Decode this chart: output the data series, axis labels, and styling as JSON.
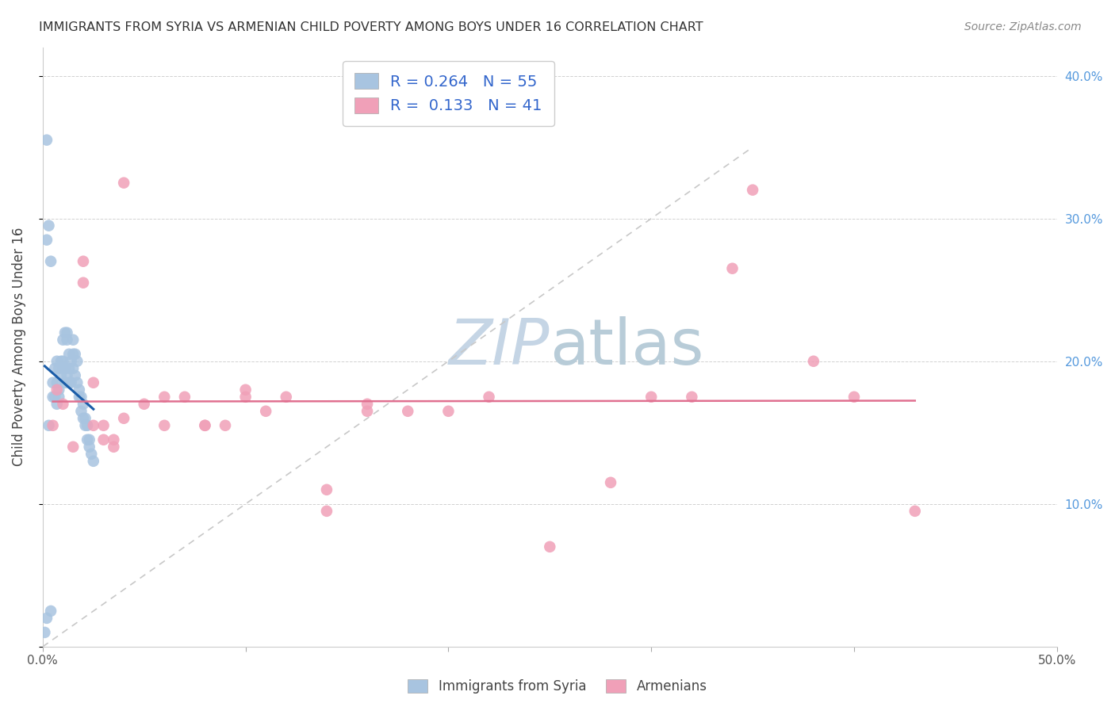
{
  "title": "IMMIGRANTS FROM SYRIA VS ARMENIAN CHILD POVERTY AMONG BOYS UNDER 16 CORRELATION CHART",
  "source": "Source: ZipAtlas.com",
  "ylabel": "Child Poverty Among Boys Under 16",
  "xlim": [
    0.0,
    0.5
  ],
  "ylim": [
    0.0,
    0.42
  ],
  "R_syria": 0.264,
  "N_syria": 55,
  "R_armenian": 0.133,
  "N_armenian": 41,
  "color_syria": "#a8c4e0",
  "color_armenian": "#f0a0b8",
  "trendline_syria_color": "#1a5ca8",
  "trendline_armenian_color": "#e07090",
  "diagonal_color": "#c8c8c8",
  "watermark_color": "#ccdaeb",
  "background": "#ffffff",
  "legend_syria": "Immigrants from Syria",
  "legend_armenian": "Armenians",
  "syria_x": [
    0.002,
    0.003,
    0.004,
    0.005,
    0.005,
    0.006,
    0.006,
    0.007,
    0.007,
    0.007,
    0.008,
    0.008,
    0.008,
    0.009,
    0.009,
    0.01,
    0.01,
    0.01,
    0.011,
    0.011,
    0.011,
    0.012,
    0.012,
    0.012,
    0.013,
    0.013,
    0.013,
    0.014,
    0.014,
    0.015,
    0.015,
    0.015,
    0.016,
    0.016,
    0.017,
    0.017,
    0.018,
    0.018,
    0.019,
    0.019,
    0.02,
    0.02,
    0.021,
    0.021,
    0.022,
    0.022,
    0.023,
    0.023,
    0.024,
    0.025,
    0.002,
    0.003,
    0.004,
    0.002,
    0.001
  ],
  "syria_y": [
    0.355,
    0.155,
    0.025,
    0.175,
    0.185,
    0.195,
    0.175,
    0.2,
    0.185,
    0.17,
    0.195,
    0.18,
    0.175,
    0.2,
    0.19,
    0.215,
    0.2,
    0.195,
    0.22,
    0.195,
    0.185,
    0.22,
    0.215,
    0.19,
    0.205,
    0.195,
    0.185,
    0.2,
    0.185,
    0.215,
    0.205,
    0.195,
    0.205,
    0.19,
    0.2,
    0.185,
    0.18,
    0.175,
    0.175,
    0.165,
    0.17,
    0.16,
    0.16,
    0.155,
    0.155,
    0.145,
    0.145,
    0.14,
    0.135,
    0.13,
    0.285,
    0.295,
    0.27,
    0.02,
    0.01
  ],
  "armenian_x": [
    0.005,
    0.007,
    0.01,
    0.015,
    0.02,
    0.025,
    0.03,
    0.035,
    0.04,
    0.05,
    0.06,
    0.07,
    0.08,
    0.09,
    0.1,
    0.11,
    0.12,
    0.14,
    0.16,
    0.18,
    0.02,
    0.025,
    0.03,
    0.035,
    0.04,
    0.06,
    0.08,
    0.1,
    0.14,
    0.16,
    0.3,
    0.32,
    0.34,
    0.38,
    0.4,
    0.43,
    0.2,
    0.22,
    0.25,
    0.28,
    0.35
  ],
  "armenian_y": [
    0.155,
    0.18,
    0.17,
    0.14,
    0.255,
    0.155,
    0.145,
    0.145,
    0.325,
    0.17,
    0.175,
    0.175,
    0.155,
    0.155,
    0.18,
    0.165,
    0.175,
    0.11,
    0.17,
    0.165,
    0.27,
    0.185,
    0.155,
    0.14,
    0.16,
    0.155,
    0.155,
    0.175,
    0.095,
    0.165,
    0.175,
    0.175,
    0.265,
    0.2,
    0.175,
    0.095,
    0.165,
    0.175,
    0.07,
    0.115,
    0.32
  ]
}
